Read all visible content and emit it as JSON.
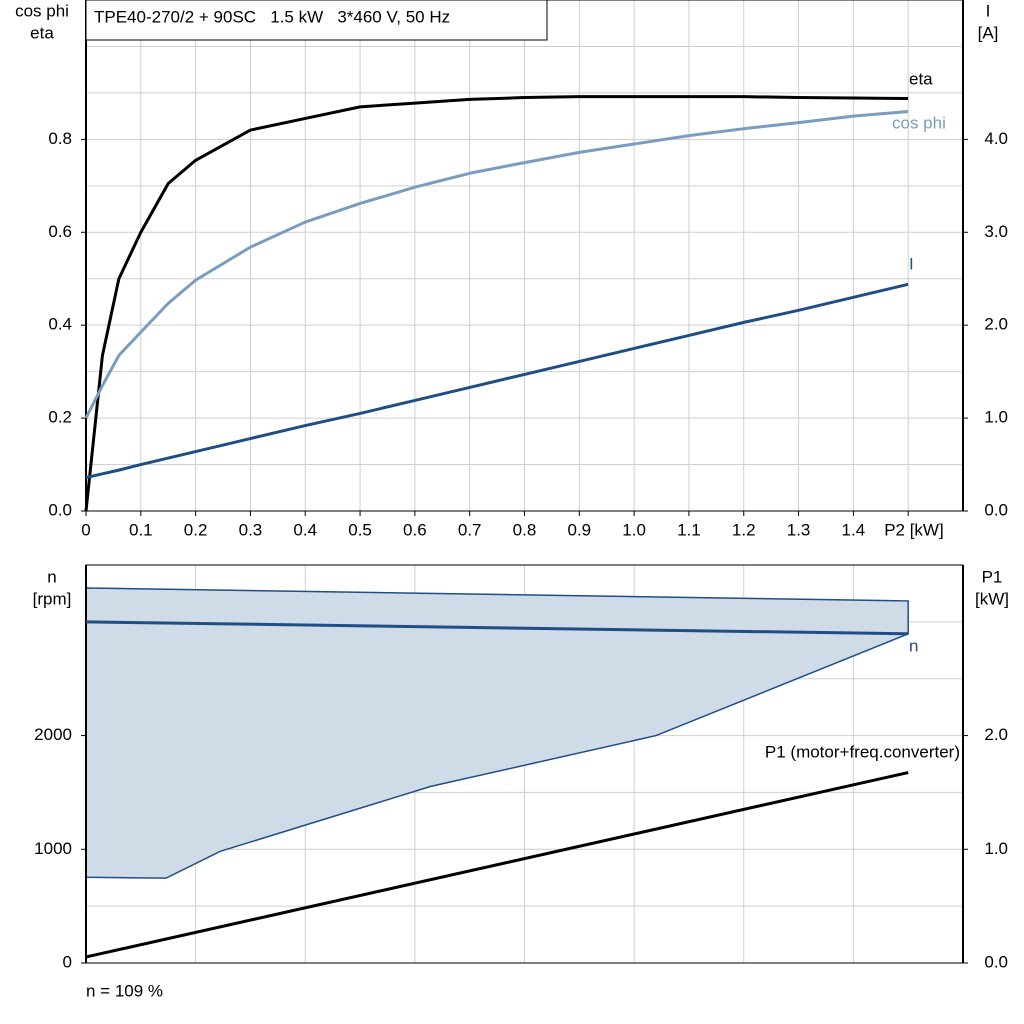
{
  "chart_data": [
    {
      "type": "line",
      "title": "TPE40-270/2 + 90SC   1.5 kW   3*460 V, 50 Hz",
      "ylabel": [
        "cos phi",
        "eta"
      ],
      "y2label": [
        "I",
        "[A]"
      ],
      "xlim": [
        0,
        1.6
      ],
      "xticks": [
        0,
        0.1,
        0.2,
        0.3,
        0.4,
        0.5,
        0.6,
        0.7,
        0.8,
        0.9,
        {
          "value": 1,
          "label": "1.0"
        },
        1.1,
        1.2,
        1.3,
        1.4,
        {
          "value": 1.5,
          "label": "P2 [kW]"
        }
      ],
      "ylim": [
        0,
        1.1
      ],
      "yticks": [
        {
          "value": 0,
          "label": "0.0"
        },
        0.2,
        0.4,
        0.6,
        0.8
      ],
      "ygrid_minor": [
        0.1,
        0.3,
        0.5,
        0.7,
        0.9,
        1.0
      ],
      "y2lim": [
        0,
        5.5
      ],
      "y2ticks": [
        {
          "value": 0,
          "label": "0.0"
        },
        {
          "value": 1,
          "label": "1.0"
        },
        {
          "value": 2,
          "label": "2.0"
        },
        {
          "value": 3,
          "label": "3.0"
        },
        {
          "value": 4,
          "label": "4.0"
        }
      ],
      "grid": true,
      "x": [
        0,
        0.03,
        0.06,
        0.1,
        0.15,
        0.2,
        0.3,
        0.4,
        0.5,
        0.6,
        0.7,
        0.8,
        0.9,
        1.0,
        1.1,
        1.2,
        1.3,
        1.4,
        1.5
      ],
      "series": [
        {
          "name": "eta",
          "color": "#000000",
          "values": [
            0,
            0.335,
            0.5,
            0.6,
            0.705,
            0.755,
            0.82,
            0.845,
            0.87,
            0.878,
            0.886,
            0.89,
            0.892,
            0.892,
            0.892,
            0.892,
            0.89,
            0.889,
            0.888
          ]
        },
        {
          "name": "cos phi",
          "color": "#7a9cbf",
          "values": [
            0.2,
            0.27,
            0.335,
            0.385,
            0.447,
            0.497,
            0.568,
            0.622,
            0.662,
            0.697,
            0.727,
            0.75,
            0.772,
            0.79,
            0.808,
            0.823,
            0.836,
            0.85,
            0.86
          ]
        },
        {
          "name": "I",
          "color": "#1f4e85",
          "axis": "y2",
          "values": [
            0.36,
            0.4,
            0.44,
            0.5,
            0.57,
            0.64,
            0.78,
            0.92,
            1.05,
            1.19,
            1.33,
            1.47,
            1.61,
            1.75,
            1.89,
            2.03,
            2.16,
            2.3,
            2.44
          ]
        }
      ]
    },
    {
      "type": "line",
      "ylabel": [
        "n",
        "[rpm]"
      ],
      "y2label": [
        "P1",
        "[kW]"
      ],
      "xlim": [
        0,
        1.6
      ],
      "xgrid": [
        0.2,
        0.4,
        0.6,
        0.8,
        1.0,
        1.2,
        1.4
      ],
      "ylim": [
        0,
        3500
      ],
      "yticks": [
        0,
        1000,
        2000
      ],
      "ygrid_minor": [
        500,
        1500,
        2500,
        3000
      ],
      "y2lim": [
        0,
        3.5
      ],
      "y2ticks": [
        {
          "value": 0,
          "label": "0.0"
        },
        {
          "value": 1,
          "label": "1.0"
        },
        {
          "value": 2,
          "label": "2.0"
        }
      ],
      "grid": true,
      "band": {
        "color": "#d0dbe8",
        "edge": "#1f4e85",
        "upper": {
          "x": [
            0,
            1.5
          ],
          "values": [
            3298,
            3184
          ]
        },
        "lower": {
          "x": [
            0,
            0.146,
            0.245,
            0.629,
            1.04,
            1.5
          ],
          "values": [
            754,
            746,
            982,
            1553,
            2000,
            2895
          ]
        }
      },
      "series": [
        {
          "name": "n",
          "color": "#1f4e85",
          "x": [
            0,
            1.5
          ],
          "values": [
            3000,
            2895
          ]
        },
        {
          "name": "P1 (motor+freq.converter)",
          "color": "#000000",
          "axis": "y2",
          "x": [
            0,
            1.5
          ],
          "values": [
            0.053,
            1.675
          ]
        }
      ],
      "note": "n = 109 %"
    }
  ]
}
